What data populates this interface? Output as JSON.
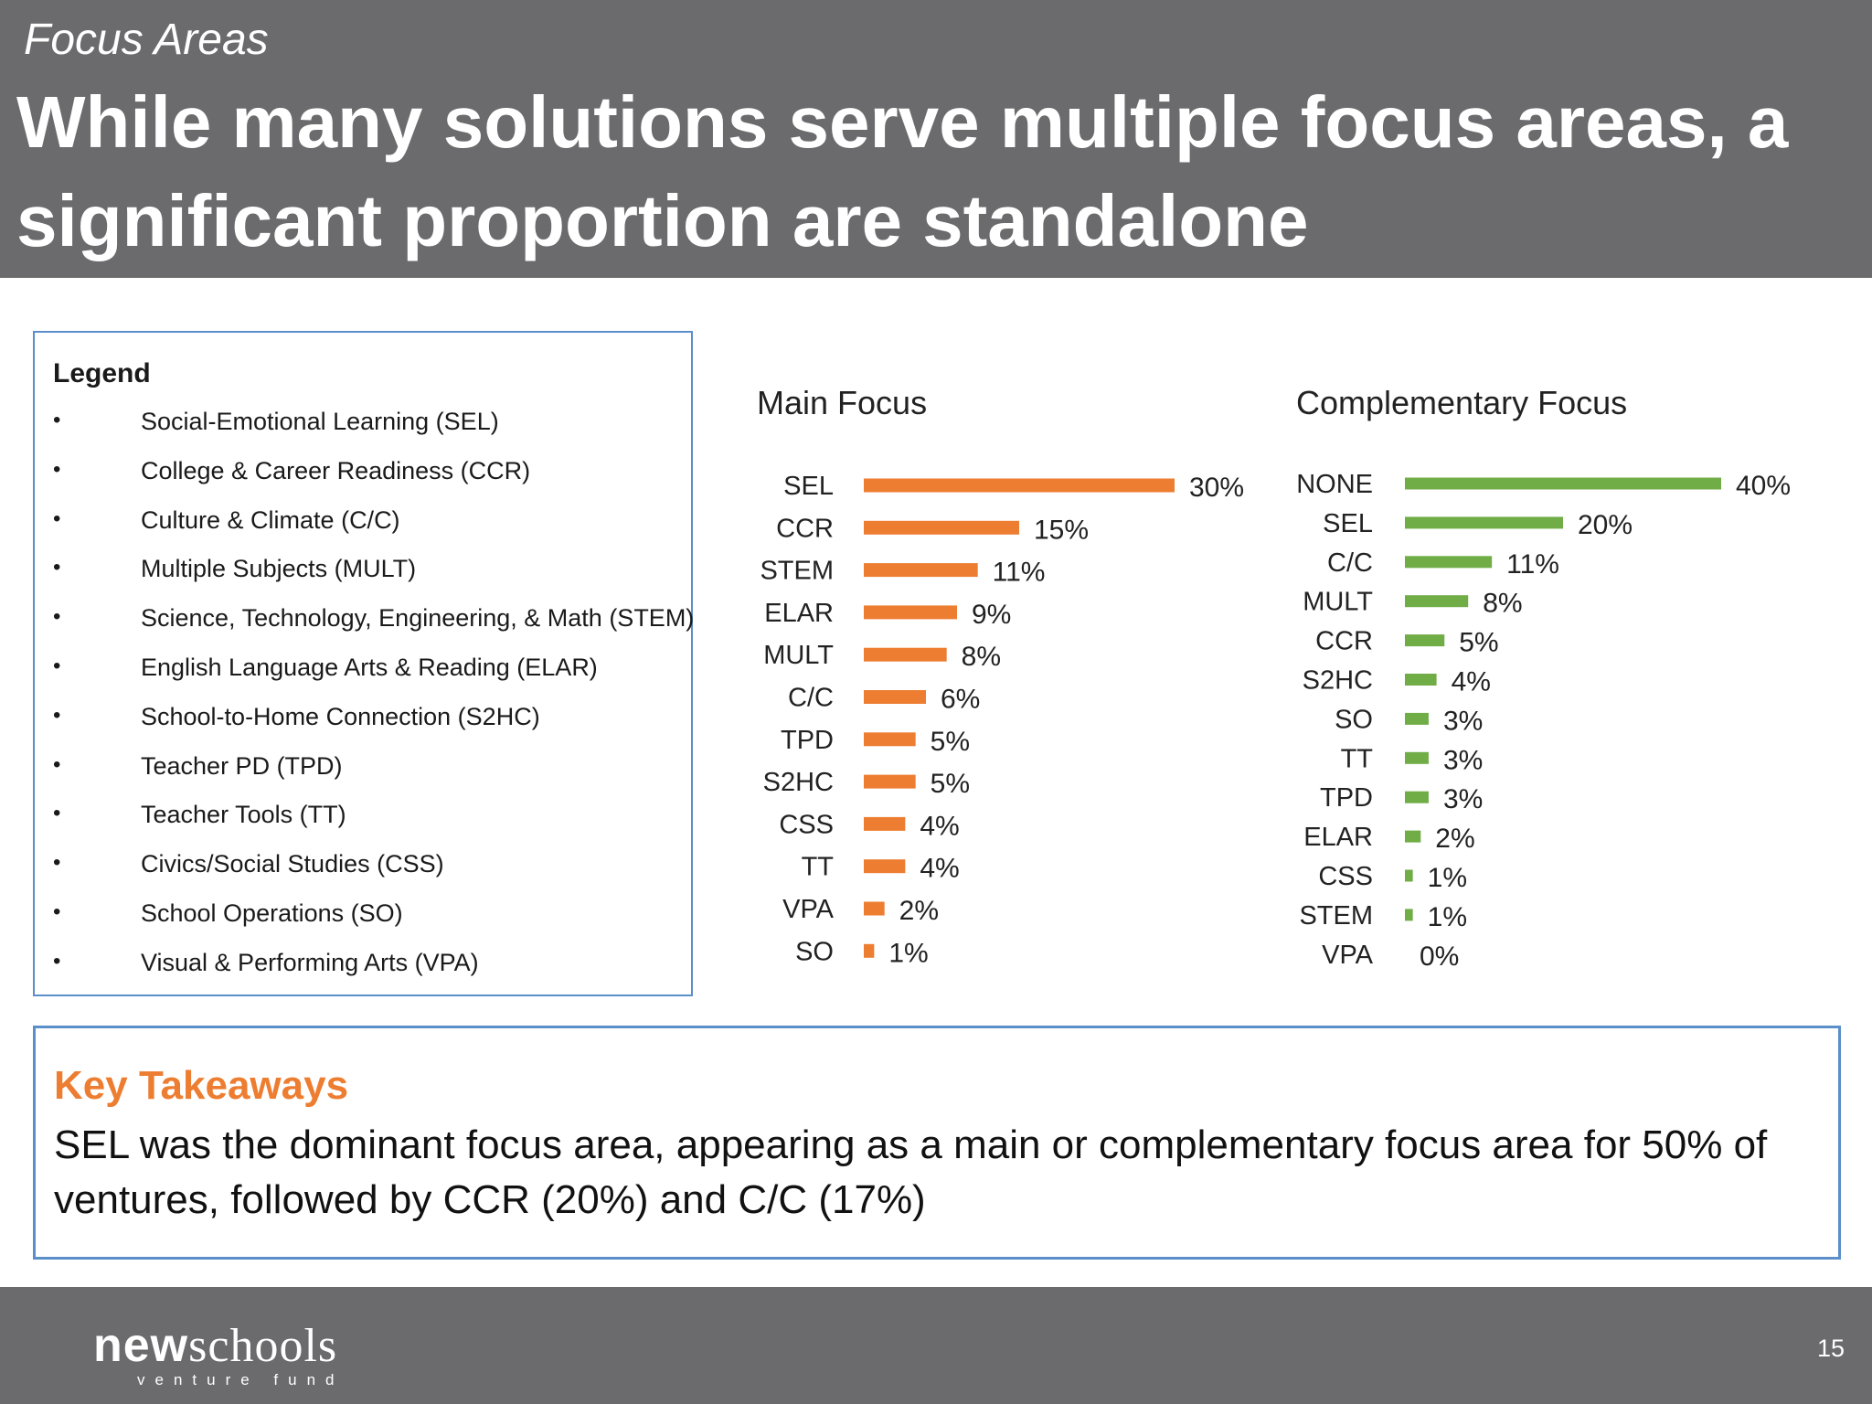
{
  "header": {
    "kicker": "Focus Areas",
    "title": "While many solutions serve multiple focus areas, a significant proportion are standalone"
  },
  "legend": {
    "title": "Legend",
    "items": [
      "Social-Emotional Learning (SEL)",
      "College & Career Readiness (CCR)",
      "Culture & Climate (C/C)",
      "Multiple Subjects (MULT)",
      "Science, Technology, Engineering, & Math (STEM)",
      "English Language Arts & Reading (ELAR)",
      "School-to-Home Connection (S2HC)",
      "Teacher PD (TPD)",
      "Teacher Tools (TT)",
      "Civics/Social Studies (CSS)",
      "School Operations (SO)",
      "Visual & Performing Arts (VPA)"
    ]
  },
  "chart_data": [
    {
      "type": "bar",
      "orientation": "horizontal",
      "title": "Main Focus",
      "categories": [
        "SEL",
        "CCR",
        "STEM",
        "ELAR",
        "MULT",
        "C/C",
        "TPD",
        "S2HC",
        "CSS",
        "TT",
        "VPA",
        "SO"
      ],
      "values": [
        30,
        15,
        11,
        9,
        8,
        6,
        5,
        5,
        4,
        4,
        2,
        1
      ],
      "value_labels": [
        "30%",
        "15%",
        "11%",
        "9%",
        "8%",
        "6%",
        "5%",
        "5%",
        "4%",
        "4%",
        "2%",
        "1%"
      ],
      "unit": "%",
      "color": "#ed7d31"
    },
    {
      "type": "bar",
      "orientation": "horizontal",
      "title": "Complementary Focus",
      "categories": [
        "NONE",
        "SEL",
        "C/C",
        "MULT",
        "CCR",
        "S2HC",
        "SO",
        "TT",
        "TPD",
        "ELAR",
        "CSS",
        "STEM",
        "VPA"
      ],
      "values": [
        40,
        20,
        11,
        8,
        5,
        4,
        3,
        3,
        3,
        2,
        1,
        1,
        0
      ],
      "value_labels": [
        "40%",
        "20%",
        "11%",
        "8%",
        "5%",
        "4%",
        "3%",
        "3%",
        "3%",
        "2%",
        "1%",
        "1%",
        "0%"
      ],
      "unit": "%",
      "color": "#70ad47"
    }
  ],
  "takeaways": {
    "title": "Key Takeaways",
    "text": "SEL was the dominant focus area, appearing as a main or complementary focus area for 50% of ventures, followed by CCR (20%) and C/C (17%)"
  },
  "footer": {
    "logo_bold": "new",
    "logo_light": "schools",
    "logo_sub": "venture fund",
    "page_number": "15"
  }
}
